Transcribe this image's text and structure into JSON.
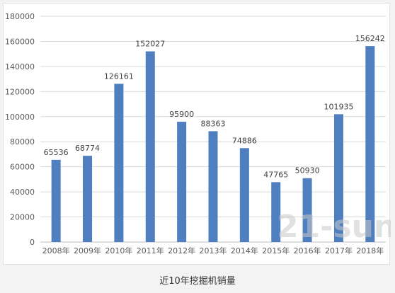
{
  "chart_data": {
    "type": "bar",
    "categories": [
      "2008年",
      "2009年",
      "2010年",
      "2011年",
      "2012年",
      "2013年",
      "2014年",
      "2015年",
      "2016年",
      "2017年",
      "2018年"
    ],
    "values": [
      65536,
      68774,
      126161,
      152027,
      95900,
      88363,
      74886,
      47765,
      50930,
      101935,
      156242
    ],
    "ylim": [
      0,
      180000
    ],
    "yticks": [
      0,
      20000,
      40000,
      60000,
      80000,
      100000,
      120000,
      140000,
      160000,
      180000
    ],
    "grid": true,
    "bar_color": "#4f7fbf",
    "data_labels": true
  },
  "caption": "近10年挖掘机销量",
  "watermark": "21-sun"
}
